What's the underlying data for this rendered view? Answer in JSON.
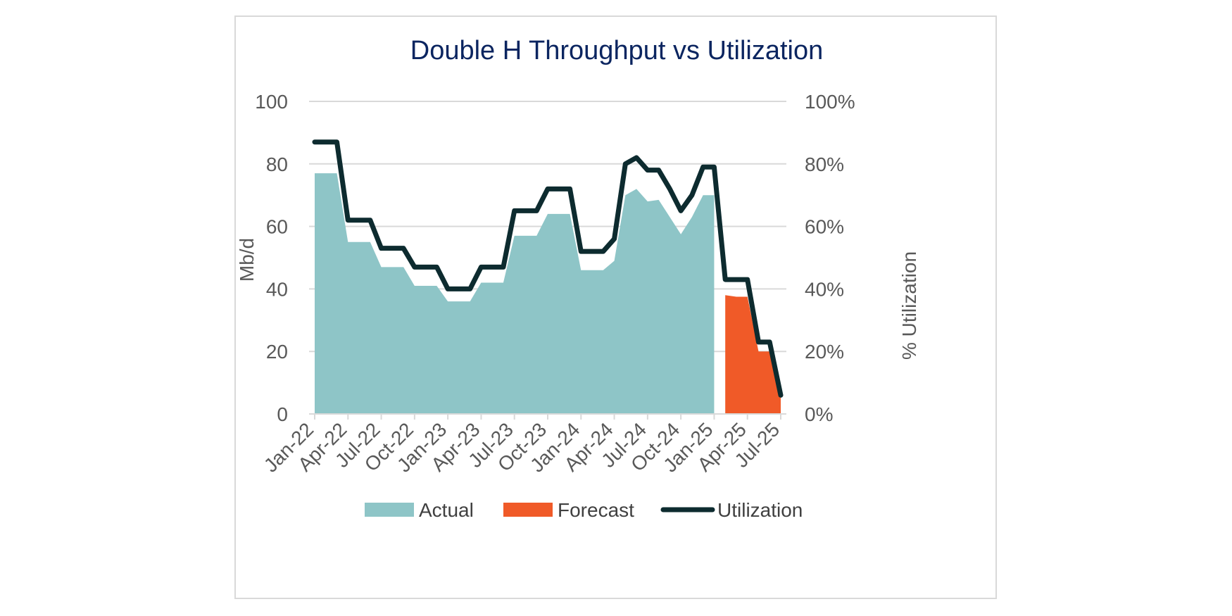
{
  "chart_data": {
    "type": "area",
    "title": "Double H Throughput vs Utilization",
    "ylabel": "Mb/d",
    "y2label": "% Utilization",
    "ylim": [
      0,
      100
    ],
    "y2lim": [
      0,
      1
    ],
    "yticks": [
      "0",
      "20",
      "40",
      "60",
      "80",
      "100"
    ],
    "y2ticks": [
      "0%",
      "20%",
      "40%",
      "60%",
      "80%",
      "100%"
    ],
    "xticks": [
      "Jan-22",
      "Apr-22",
      "Jul-22",
      "Oct-22",
      "Jan-23",
      "Apr-23",
      "Jul-23",
      "Oct-23",
      "Jan-24",
      "Apr-24",
      "Jul-24",
      "Oct-24",
      "Jan-25",
      "Apr-25",
      "Jul-25"
    ],
    "grid": true,
    "legend_position": "bottom",
    "x": [
      "Jan-22",
      "Feb-22",
      "Mar-22",
      "Apr-22",
      "May-22",
      "Jun-22",
      "Jul-22",
      "Aug-22",
      "Sep-22",
      "Oct-22",
      "Nov-22",
      "Dec-22",
      "Jan-23",
      "Feb-23",
      "Mar-23",
      "Apr-23",
      "May-23",
      "Jun-23",
      "Jul-23",
      "Aug-23",
      "Sep-23",
      "Oct-23",
      "Nov-23",
      "Dec-23",
      "Jan-24",
      "Feb-24",
      "Mar-24",
      "Apr-24",
      "May-24",
      "Jun-24",
      "Jul-24",
      "Aug-24",
      "Sep-24",
      "Oct-24",
      "Nov-24",
      "Dec-24",
      "Jan-25",
      "Feb-25",
      "Mar-25",
      "Apr-25",
      "May-25",
      "Jun-25",
      "Jul-25"
    ],
    "series": [
      {
        "name": "Actual",
        "type": "area",
        "color": "#8ec5c7",
        "values": [
          77,
          77,
          77,
          55,
          55,
          55,
          47,
          47,
          47,
          41,
          41,
          41,
          36,
          36,
          36,
          42,
          42,
          42,
          57,
          57,
          57,
          64,
          64,
          64,
          46,
          46,
          46,
          49,
          70,
          72,
          68,
          68.5,
          63,
          57.5,
          63,
          70,
          70,
          null,
          null,
          null,
          null,
          null,
          null
        ]
      },
      {
        "name": "Forecast",
        "type": "area",
        "color": "#f05a28",
        "values": [
          null,
          null,
          null,
          null,
          null,
          null,
          null,
          null,
          null,
          null,
          null,
          null,
          null,
          null,
          null,
          null,
          null,
          null,
          null,
          null,
          null,
          null,
          null,
          null,
          null,
          null,
          null,
          null,
          null,
          null,
          null,
          null,
          null,
          null,
          null,
          null,
          null,
          38,
          37.5,
          37.5,
          20,
          20,
          5.5
        ]
      },
      {
        "name": "Utilization",
        "type": "line",
        "axis": "right",
        "color": "#0d2b2f",
        "values": [
          0.87,
          0.87,
          0.87,
          0.62,
          0.62,
          0.62,
          0.53,
          0.53,
          0.53,
          0.47,
          0.47,
          0.47,
          0.4,
          0.4,
          0.4,
          0.47,
          0.47,
          0.47,
          0.65,
          0.65,
          0.65,
          0.72,
          0.72,
          0.72,
          0.52,
          0.52,
          0.52,
          0.56,
          0.8,
          0.82,
          0.78,
          0.78,
          0.72,
          0.65,
          0.7,
          0.79,
          0.79,
          0.43,
          0.43,
          0.43,
          0.23,
          0.23,
          0.06
        ]
      }
    ]
  }
}
